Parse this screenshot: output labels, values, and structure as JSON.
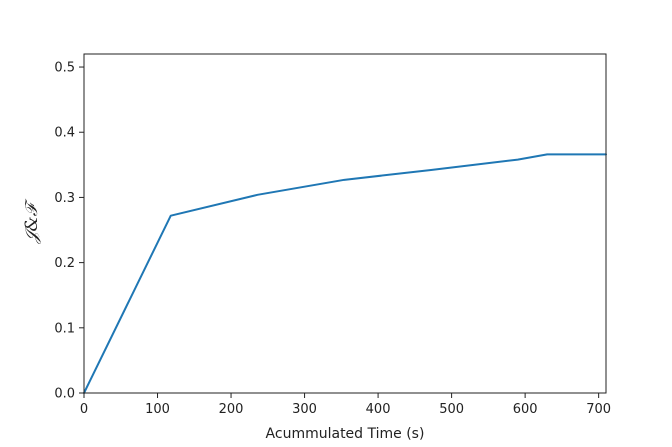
{
  "chart_data": {
    "type": "line",
    "xlabel": "Acummulated Time (s)",
    "ylabel": "𝒥&ℱ",
    "xlim": [
      0,
      710
    ],
    "ylim": [
      0.0,
      0.52
    ],
    "xticks": [
      0,
      100,
      200,
      300,
      400,
      500,
      600,
      700
    ],
    "xtick_labels": [
      "0",
      "100",
      "200",
      "300",
      "400",
      "500",
      "600",
      "700"
    ],
    "yticks": [
      0.0,
      0.1,
      0.2,
      0.3,
      0.4,
      0.5
    ],
    "ytick_labels": [
      "0.0",
      "0.1",
      "0.2",
      "0.3",
      "0.4",
      "0.5"
    ],
    "grid": false,
    "series": [
      {
        "color": "#1f77b4",
        "x": [
          0,
          118,
          236,
          354,
          472,
          590,
          630,
          710
        ],
        "y": [
          0.0,
          0.272,
          0.304,
          0.327,
          0.342,
          0.358,
          0.366,
          0.366
        ]
      }
    ]
  }
}
